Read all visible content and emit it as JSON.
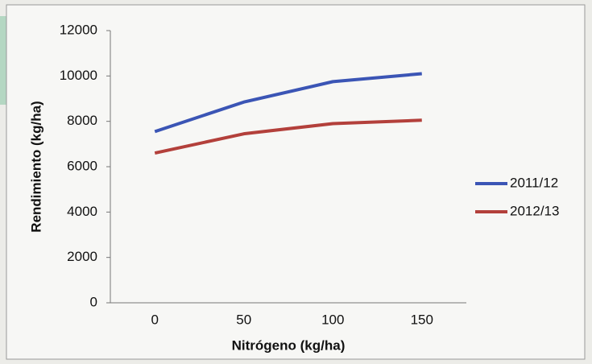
{
  "chart_data": {
    "type": "line",
    "x_label": "Nitrógeno (kg/ha)",
    "y_label": "Rendimiento (kg/ha)",
    "categories": [
      "0",
      "50",
      "100",
      "150"
    ],
    "series": [
      {
        "name": "2011/12",
        "color": "#3b55b5",
        "values": [
          7550,
          8850,
          9750,
          10100
        ]
      },
      {
        "name": "2012/13",
        "color": "#b3403b",
        "values": [
          6600,
          7450,
          7900,
          8050
        ]
      }
    ],
    "ylim": [
      0,
      12000
    ],
    "yticks": [
      0,
      2000,
      4000,
      6000,
      8000,
      10000,
      12000
    ],
    "legend": "right"
  }
}
